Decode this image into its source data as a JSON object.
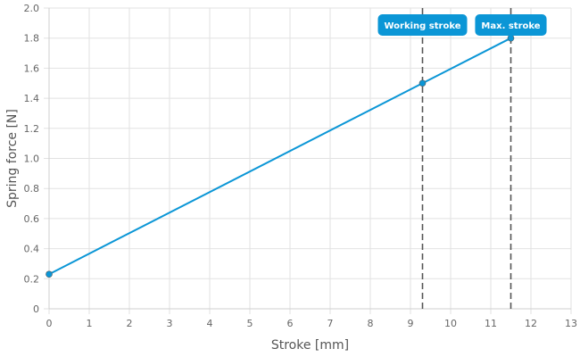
{
  "chart_data": {
    "type": "line",
    "xlabel": "Stroke [mm]",
    "ylabel": "Spring force [N]",
    "xlim": [
      0,
      13
    ],
    "ylim": [
      0,
      2.0
    ],
    "x_ticks": [
      "0",
      "1",
      "2",
      "3",
      "4",
      "5",
      "6",
      "7",
      "8",
      "9",
      "10",
      "11",
      "12",
      "13"
    ],
    "y_ticks": [
      "0",
      "0.2",
      "0.4",
      "0.6",
      "0.8",
      "1.0",
      "1.2",
      "1.4",
      "1.6",
      "1.8",
      "2.0"
    ],
    "grid": true,
    "series": [
      {
        "x": [
          0,
          9.3,
          11.5
        ],
        "y": [
          0.23,
          1.5,
          1.8
        ],
        "color": "#0b96d6"
      }
    ],
    "annotations": [
      {
        "label": "Working stroke",
        "x": 9.3
      },
      {
        "label": "Max. stroke",
        "x": 11.5
      }
    ],
    "colors": {
      "line": "#0b96d6",
      "marker_line": "#555555",
      "label_bg": "#0b96d6"
    }
  }
}
